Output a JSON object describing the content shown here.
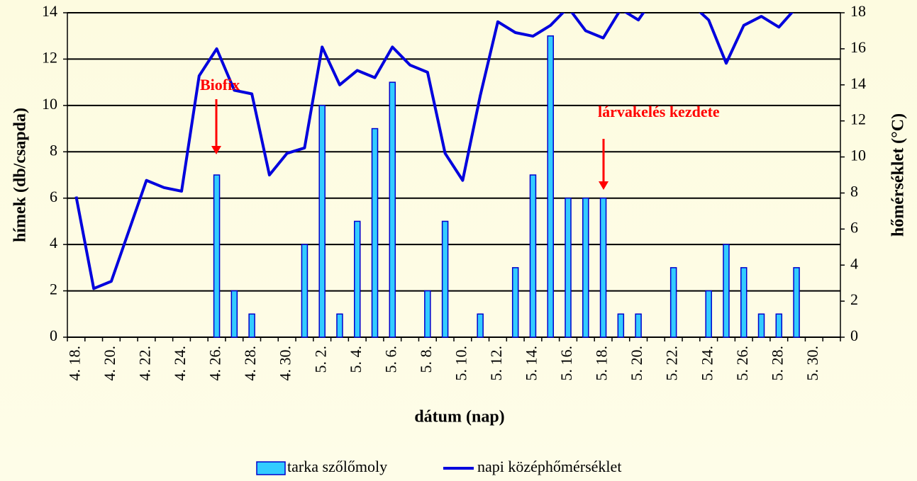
{
  "chart_data": {
    "type": "bar-line",
    "xlabel": "dátum (nap)",
    "ylabel": "hímek (db/csapda)",
    "y2label": "hőmérséklet (°C)",
    "categories": [
      "4. 18.",
      null,
      "4. 20.",
      null,
      "4. 22.",
      null,
      "4. 24.",
      null,
      "4. 26.",
      null,
      "4. 28.",
      null,
      "4. 30.",
      null,
      "5. 2.",
      null,
      "5. 4.",
      null,
      "5. 6.",
      null,
      "5. 8.",
      null,
      "5. 10.",
      null,
      "5. 12.",
      null,
      "5. 14.",
      null,
      "5. 16.",
      null,
      "5. 18.",
      null,
      "5. 20.",
      null,
      "5. 22.",
      null,
      "5. 24.",
      null,
      "5. 26.",
      null,
      "5. 28.",
      null,
      "5. 30.",
      null
    ],
    "series": [
      {
        "name": "tarka szőlőmoly",
        "type": "bar",
        "color": "#33ccff",
        "edge": "#0000cc",
        "values": [
          0,
          0,
          0,
          0,
          0,
          0,
          0,
          0,
          7,
          2,
          1,
          0,
          0,
          4,
          10,
          1,
          5,
          9,
          11,
          0,
          2,
          5,
          0,
          1,
          0,
          3,
          7,
          13,
          6,
          6,
          6,
          1,
          1,
          0,
          3,
          0,
          2,
          4,
          3,
          1,
          1,
          3,
          0,
          0
        ]
      },
      {
        "name": "napi középhőmérséklet",
        "type": "line",
        "axis": "y2",
        "color": "#0000dd",
        "values": [
          7.8,
          2.7,
          3.1,
          5.9,
          8.7,
          8.3,
          8.1,
          14.5,
          16.0,
          13.7,
          13.5,
          9.0,
          10.2,
          10.5,
          16.1,
          14.0,
          14.8,
          14.4,
          16.1,
          15.1,
          14.7,
          10.2,
          8.7,
          13.4,
          17.5,
          16.9,
          16.7,
          17.3,
          18.3,
          17.0,
          16.6,
          18.2,
          17.6,
          19.0,
          19.0,
          18.5,
          17.6,
          15.2,
          17.3,
          17.8,
          17.2,
          18.3,
          null,
          null
        ]
      }
    ],
    "ylim": [
      0,
      14
    ],
    "yticks": [
      0,
      2,
      4,
      6,
      8,
      10,
      12,
      14
    ],
    "y2lim": [
      0,
      18
    ],
    "y2ticks": [
      0,
      2,
      4,
      6,
      8,
      10,
      12,
      14,
      16,
      18
    ],
    "grid": true,
    "legend": "bottom",
    "annotations": [
      {
        "text": "Biofix"
      },
      {
        "text": "lárvakelés kezdete"
      }
    ]
  }
}
